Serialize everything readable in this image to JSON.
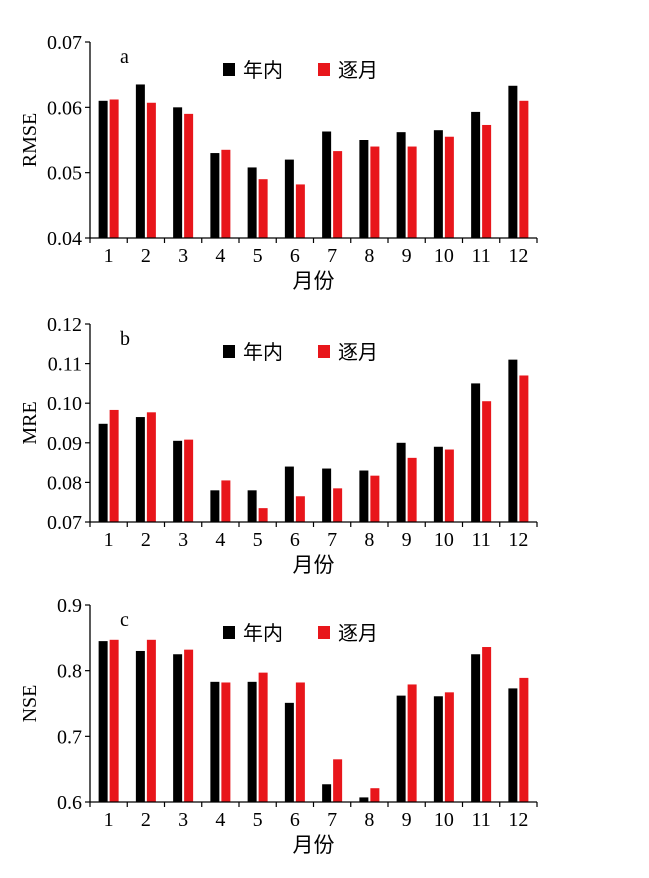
{
  "chart_data": [
    {
      "type": "bar",
      "panel_label": "a",
      "ylabel": "RMSE",
      "xlabel": "月份",
      "ylim": [
        0.04,
        0.07
      ],
      "yticks": [
        "0.04",
        "0.05",
        "0.06",
        "0.07"
      ],
      "categories": [
        "1",
        "2",
        "3",
        "4",
        "5",
        "6",
        "7",
        "8",
        "9",
        "10",
        "11",
        "12"
      ],
      "legend_position": "top-center",
      "series": [
        {
          "name": "年内",
          "color": "#000000",
          "values": [
            0.061,
            0.0635,
            0.06,
            0.053,
            0.0508,
            0.052,
            0.0563,
            0.055,
            0.0562,
            0.0565,
            0.0593,
            0.0633
          ]
        },
        {
          "name": "逐月",
          "color": "#e8161b",
          "values": [
            0.0612,
            0.0607,
            0.059,
            0.0535,
            0.049,
            0.0482,
            0.0533,
            0.054,
            0.054,
            0.0555,
            0.0573,
            0.061
          ]
        }
      ]
    },
    {
      "type": "bar",
      "panel_label": "b",
      "ylabel": "MRE",
      "xlabel": "月份",
      "ylim": [
        0.07,
        0.12
      ],
      "yticks": [
        "0.07",
        "0.08",
        "0.09",
        "0.10",
        "0.11",
        "0.12"
      ],
      "categories": [
        "1",
        "2",
        "3",
        "4",
        "5",
        "6",
        "7",
        "8",
        "9",
        "10",
        "11",
        "12"
      ],
      "legend_position": "top-center",
      "series": [
        {
          "name": "年内",
          "color": "#000000",
          "values": [
            0.0948,
            0.0965,
            0.0905,
            0.078,
            0.078,
            0.084,
            0.0835,
            0.083,
            0.09,
            0.089,
            0.105,
            0.111
          ]
        },
        {
          "name": "逐月",
          "color": "#e8161b",
          "values": [
            0.0983,
            0.0977,
            0.0908,
            0.0805,
            0.0735,
            0.0765,
            0.0785,
            0.0817,
            0.0862,
            0.0883,
            0.1005,
            0.107
          ]
        }
      ]
    },
    {
      "type": "bar",
      "panel_label": "c",
      "ylabel": "NSE",
      "xlabel": "月份",
      "ylim": [
        0.6,
        0.9
      ],
      "yticks": [
        "0.6",
        "0.7",
        "0.8",
        "0.9"
      ],
      "categories": [
        "1",
        "2",
        "3",
        "4",
        "5",
        "6",
        "7",
        "8",
        "9",
        "10",
        "11",
        "12"
      ],
      "legend_position": "top-center",
      "series": [
        {
          "name": "年内",
          "color": "#000000",
          "values": [
            0.845,
            0.83,
            0.825,
            0.783,
            0.783,
            0.751,
            0.627,
            0.607,
            0.762,
            0.761,
            0.825,
            0.773
          ]
        },
        {
          "name": "逐月",
          "color": "#e8161b",
          "values": [
            0.847,
            0.847,
            0.832,
            0.782,
            0.797,
            0.782,
            0.665,
            0.621,
            0.779,
            0.767,
            0.836,
            0.789
          ]
        }
      ]
    }
  ]
}
